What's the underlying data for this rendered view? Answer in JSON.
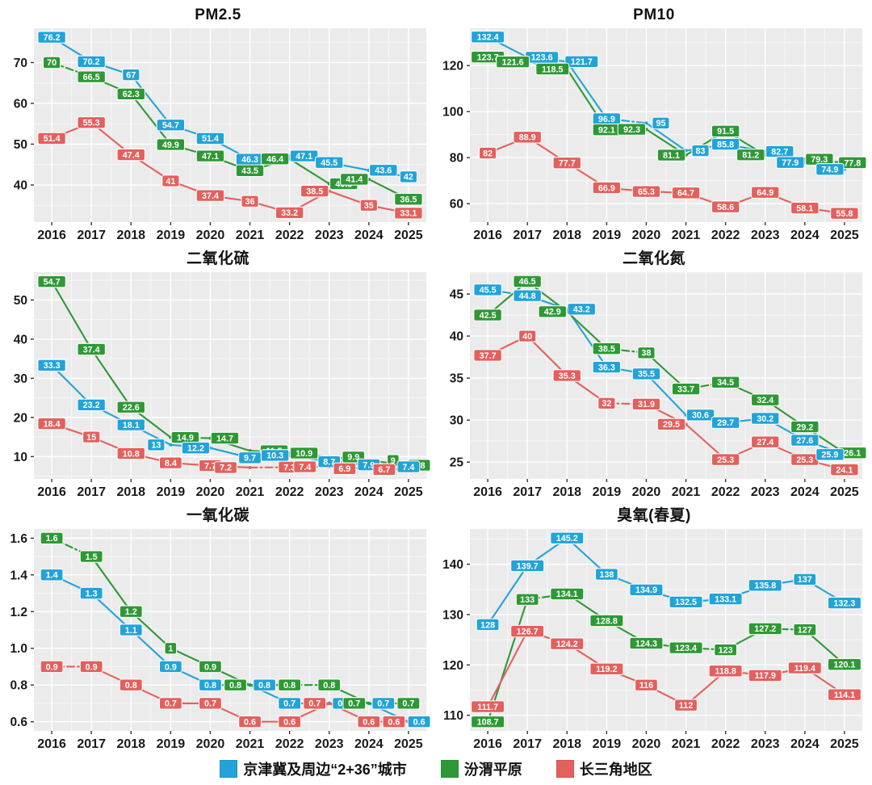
{
  "legend": {
    "items": [
      {
        "label": "京津冀及周边“2+36”城市",
        "color": "#23A3D7"
      },
      {
        "label": "汾渭平原",
        "color": "#2F9836"
      },
      {
        "label": "长三角地区",
        "color": "#E3605D"
      }
    ]
  },
  "style": {
    "panel_bg": "#EBEBEB",
    "grid_major": "#FFFFFF",
    "grid_minor": "#F7F7F7",
    "axis_text": "#1A1A1A"
  },
  "chart_data": [
    {
      "type": "line",
      "title": "PM2.5",
      "x": [
        "2016",
        "2017",
        "2018",
        "2019",
        "2020",
        "2021",
        "2022",
        "2023",
        "2024",
        "2025"
      ],
      "ylim": [
        30.9,
        78.4
      ],
      "yticks": [
        40,
        50,
        60,
        70
      ],
      "ytick_labels": [
        "40",
        "50",
        "60",
        "70"
      ],
      "grid": true,
      "legend_position": "bottom-shared",
      "series": [
        {
          "name": "京津冀及周边“2+36”城市",
          "color": "#23A3D7",
          "values": [
            76.2,
            70.2,
            67,
            54.7,
            51.4,
            46.3,
            47.1,
            45.5,
            43.6,
            42
          ],
          "dashed_segments": [
            5
          ]
        },
        {
          "name": "汾渭平原",
          "color": "#2F9836",
          "values": [
            70,
            66.5,
            62.3,
            49.9,
            47.1,
            43.5,
            46.4,
            40.3,
            41.4,
            36.5
          ],
          "dashed_segments": [
            0
          ]
        },
        {
          "name": "长三角地区",
          "color": "#E3605D",
          "values": [
            51.4,
            55.3,
            47.4,
            41,
            37.4,
            36,
            33.2,
            38.5,
            35,
            33.1
          ],
          "dashed_segments": []
        }
      ]
    },
    {
      "type": "line",
      "title": "PM10",
      "x": [
        "2016",
        "2017",
        "2018",
        "2019",
        "2020",
        "2021",
        "2022",
        "2023",
        "2024",
        "2025"
      ],
      "ylim": [
        52.0,
        136.2
      ],
      "yticks": [
        60,
        80,
        100,
        120
      ],
      "ytick_labels": [
        "60",
        "80",
        "100",
        "120"
      ],
      "grid": true,
      "legend_position": "bottom-shared",
      "series": [
        {
          "name": "京津冀及周边“2+36”城市",
          "color": "#23A3D7",
          "values": [
            132.4,
            123.6,
            121.7,
            96.9,
            95,
            83,
            85.8,
            82.7,
            77.9,
            74.9
          ],
          "dashed_segments": [
            1,
            3
          ]
        },
        {
          "name": "汾渭平原",
          "color": "#2F9836",
          "values": [
            123.7,
            121.6,
            118.5,
            92.1,
            92.3,
            81.1,
            91.5,
            81.2,
            79.3,
            77.8
          ],
          "dashed_segments": [
            3,
            8
          ]
        },
        {
          "name": "长三角地区",
          "color": "#E3605D",
          "values": [
            82,
            88.9,
            77.7,
            66.9,
            65.3,
            64.7,
            58.6,
            64.9,
            58.1,
            55.8
          ],
          "dashed_segments": []
        }
      ]
    },
    {
      "type": "line",
      "title": "二氧化硫",
      "x": [
        "2016",
        "2017",
        "2018",
        "2019",
        "2020",
        "2021",
        "2022",
        "2023",
        "2024",
        "2025"
      ],
      "ylim": [
        4.3,
        57.1
      ],
      "yticks": [
        10,
        20,
        30,
        40,
        50
      ],
      "ytick_labels": [
        "10",
        "20",
        "30",
        "40",
        "50"
      ],
      "grid": true,
      "legend_position": "bottom-shared",
      "series": [
        {
          "name": "京津冀及周边“2+36”城市",
          "color": "#23A3D7",
          "values": [
            33.3,
            23.2,
            18.1,
            13,
            12.2,
            9.7,
            10.3,
            8.7,
            7.9,
            7.4
          ],
          "dashed_segments": []
        },
        {
          "name": "汾渭平原",
          "color": "#2F9836",
          "values": [
            54.7,
            37.4,
            22.6,
            14.9,
            14.7,
            11.5,
            10.9,
            9.9,
            9,
            7.8
          ],
          "dashed_segments": [
            3,
            7
          ]
        },
        {
          "name": "长三角地区",
          "color": "#E3605D",
          "values": [
            18.4,
            15,
            10.8,
            8.4,
            7.7,
            7.2,
            7.3,
            7.4,
            6.9,
            6.7
          ],
          "dashed_segments": [
            5,
            6
          ]
        }
      ]
    },
    {
      "type": "line",
      "title": "二氧化氮",
      "x": [
        "2016",
        "2017",
        "2018",
        "2019",
        "2020",
        "2021",
        "2022",
        "2023",
        "2024",
        "2025"
      ],
      "ylim": [
        23.0,
        47.6
      ],
      "yticks": [
        25,
        30,
        35,
        40,
        45
      ],
      "ytick_labels": [
        "25",
        "30",
        "35",
        "40",
        "45"
      ],
      "grid": true,
      "legend_position": "bottom-shared",
      "series": [
        {
          "name": "京津冀及周边“2+36”城市",
          "color": "#23A3D7",
          "values": [
            45.5,
            44.8,
            43.2,
            36.3,
            35.5,
            30.6,
            29.7,
            30.2,
            27.6,
            25.9
          ],
          "dashed_segments": [
            0
          ]
        },
        {
          "name": "汾渭平原",
          "color": "#2F9836",
          "values": [
            42.5,
            46.5,
            42.9,
            38.5,
            38,
            33.7,
            34.5,
            32.4,
            29.2,
            26.1
          ],
          "dashed_segments": [
            3,
            5
          ]
        },
        {
          "name": "长三角地区",
          "color": "#E3605D",
          "values": [
            37.7,
            40,
            35.3,
            32,
            31.9,
            29.5,
            25.3,
            27.4,
            25.3,
            24.1
          ],
          "dashed_segments": [
            3
          ]
        }
      ]
    },
    {
      "type": "line",
      "title": "一氧化碳",
      "x": [
        "2016",
        "2017",
        "2018",
        "2019",
        "2020",
        "2021",
        "2022",
        "2023",
        "2024",
        "2025"
      ],
      "ylim": [
        0.55,
        1.65
      ],
      "yticks": [
        0.6,
        0.8,
        1.0,
        1.2,
        1.4,
        1.6
      ],
      "ytick_labels": [
        "0.6",
        "0.8",
        "1.0",
        "1.2",
        "1.4",
        "1.6"
      ],
      "grid": true,
      "legend_position": "bottom-shared",
      "series": [
        {
          "name": "京津冀及周边“2+36”城市",
          "color": "#23A3D7",
          "values": [
            1.4,
            1.3,
            1.1,
            0.9,
            0.8,
            0.8,
            0.7,
            0.7,
            0.7,
            0.6
          ],
          "dashed_segments": []
        },
        {
          "name": "汾渭平原",
          "color": "#2F9836",
          "values": [
            1.6,
            1.5,
            1.2,
            1,
            0.9,
            0.8,
            0.8,
            0.8,
            0.7,
            0.7
          ],
          "dashed_segments": [
            0,
            6,
            8
          ]
        },
        {
          "name": "长三角地区",
          "color": "#E3605D",
          "values": [
            0.9,
            0.9,
            0.8,
            0.7,
            0.7,
            0.6,
            0.6,
            0.7,
            0.6,
            0.6
          ],
          "dashed_segments": [
            0
          ]
        }
      ]
    },
    {
      "type": "line",
      "title": "臭氧(春夏)",
      "x": [
        "2016",
        "2017",
        "2018",
        "2019",
        "2020",
        "2021",
        "2022",
        "2023",
        "2024",
        "2025"
      ],
      "ylim": [
        106.9,
        147.0
      ],
      "yticks": [
        110,
        120,
        130,
        140
      ],
      "ytick_labels": [
        "110",
        "120",
        "130",
        "140"
      ],
      "grid": true,
      "legend_position": "bottom-shared",
      "series": [
        {
          "name": "京津冀及周边“2+36”城市",
          "color": "#23A3D7",
          "values": [
            128,
            139.7,
            145.2,
            138,
            134.9,
            132.5,
            133.1,
            135.8,
            137,
            132.3
          ],
          "dashed_segments": []
        },
        {
          "name": "汾渭平原",
          "color": "#2F9836",
          "values": [
            108.7,
            133,
            134.1,
            128.8,
            124.3,
            123.4,
            123,
            127.2,
            127,
            120.1
          ],
          "dashed_segments": [
            1,
            5,
            7
          ]
        },
        {
          "name": "长三角地区",
          "color": "#E3605D",
          "values": [
            111.7,
            126.7,
            124.2,
            119.2,
            116,
            112,
            118.8,
            117.9,
            119.4,
            114.1
          ],
          "dashed_segments": [
            1,
            6,
            7
          ]
        }
      ]
    }
  ]
}
